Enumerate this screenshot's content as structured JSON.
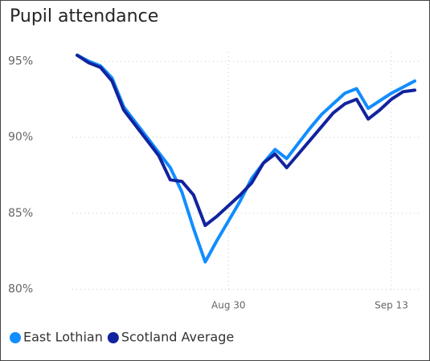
{
  "chart_data": {
    "type": "line",
    "title": "Pupil attendance",
    "categories": [
      null,
      null,
      null,
      null,
      null,
      null,
      null,
      null,
      null,
      null,
      null,
      null,
      null,
      "Aug 30",
      null,
      null,
      null,
      null,
      null,
      null,
      null,
      null,
      null,
      null,
      null,
      null,
      null,
      "Sep 13",
      null,
      null
    ],
    "series": [
      {
        "name": "East Lothian",
        "color": "#118dff",
        "values": [
          95.4,
          95.0,
          94.7,
          93.9,
          92.0,
          91.0,
          90.0,
          89.0,
          88.0,
          86.4,
          84.0,
          81.8,
          83.2,
          84.5,
          85.8,
          87.3,
          88.3,
          89.2,
          88.6,
          89.6,
          90.6,
          91.5,
          92.2,
          92.9,
          93.2,
          91.9,
          92.4,
          92.9,
          93.3,
          93.7
        ]
      },
      {
        "name": "Scotland Average",
        "color": "#12239e",
        "values": [
          95.4,
          94.9,
          94.6,
          93.7,
          91.8,
          90.8,
          89.8,
          88.8,
          87.2,
          87.1,
          86.2,
          84.2,
          84.8,
          85.5,
          86.2,
          87.0,
          88.3,
          88.9,
          88.0,
          88.9,
          89.8,
          90.7,
          91.6,
          92.2,
          92.5,
          91.2,
          91.8,
          92.5,
          93.0,
          93.1
        ]
      }
    ],
    "ylim": [
      79.4,
      95.6
    ],
    "yticks": [
      {
        "value": 80,
        "label": "80%"
      },
      {
        "value": 85,
        "label": "85%"
      },
      {
        "value": 90,
        "label": "90%"
      },
      {
        "value": 95,
        "label": "95%"
      }
    ],
    "grid": true,
    "legend": "bottom"
  }
}
